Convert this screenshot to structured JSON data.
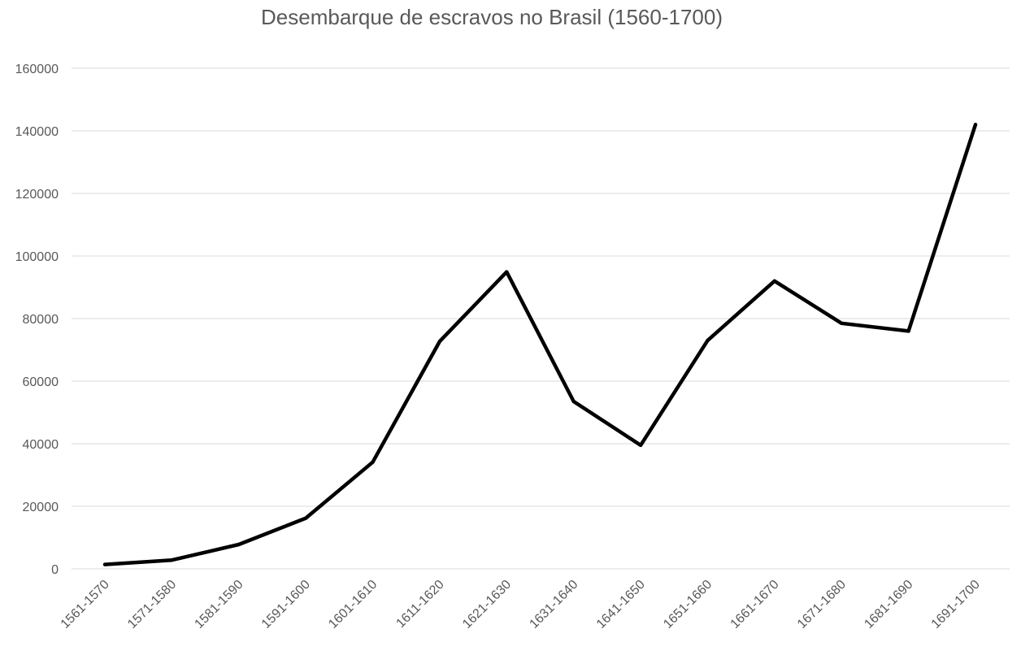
{
  "chart_data": {
    "type": "line",
    "title": "Desembarque de escravos no Brasil (1560-1700)",
    "xlabel": "",
    "ylabel": "",
    "categories": [
      "1561-1570",
      "1571-1580",
      "1581-1590",
      "1591-1600",
      "1601-1610",
      "1611-1620",
      "1621-1630",
      "1631-1640",
      "1641-1650",
      "1651-1660",
      "1661-1670",
      "1671-1680",
      "1681-1690",
      "1691-1700"
    ],
    "series": [
      {
        "values": [
          1400,
          2800,
          7800,
          16200,
          34100,
          72700,
          94900,
          53500,
          39500,
          73000,
          92000,
          78500,
          76000,
          142000
        ]
      }
    ],
    "ylim": [
      0,
      160000
    ],
    "yticks": [
      0,
      20000,
      40000,
      60000,
      80000,
      100000,
      120000,
      140000,
      160000
    ],
    "grid": true,
    "legend": "none",
    "colors": {
      "line": "#000000",
      "grid": "#d9d9d9",
      "text": "#595959"
    }
  }
}
